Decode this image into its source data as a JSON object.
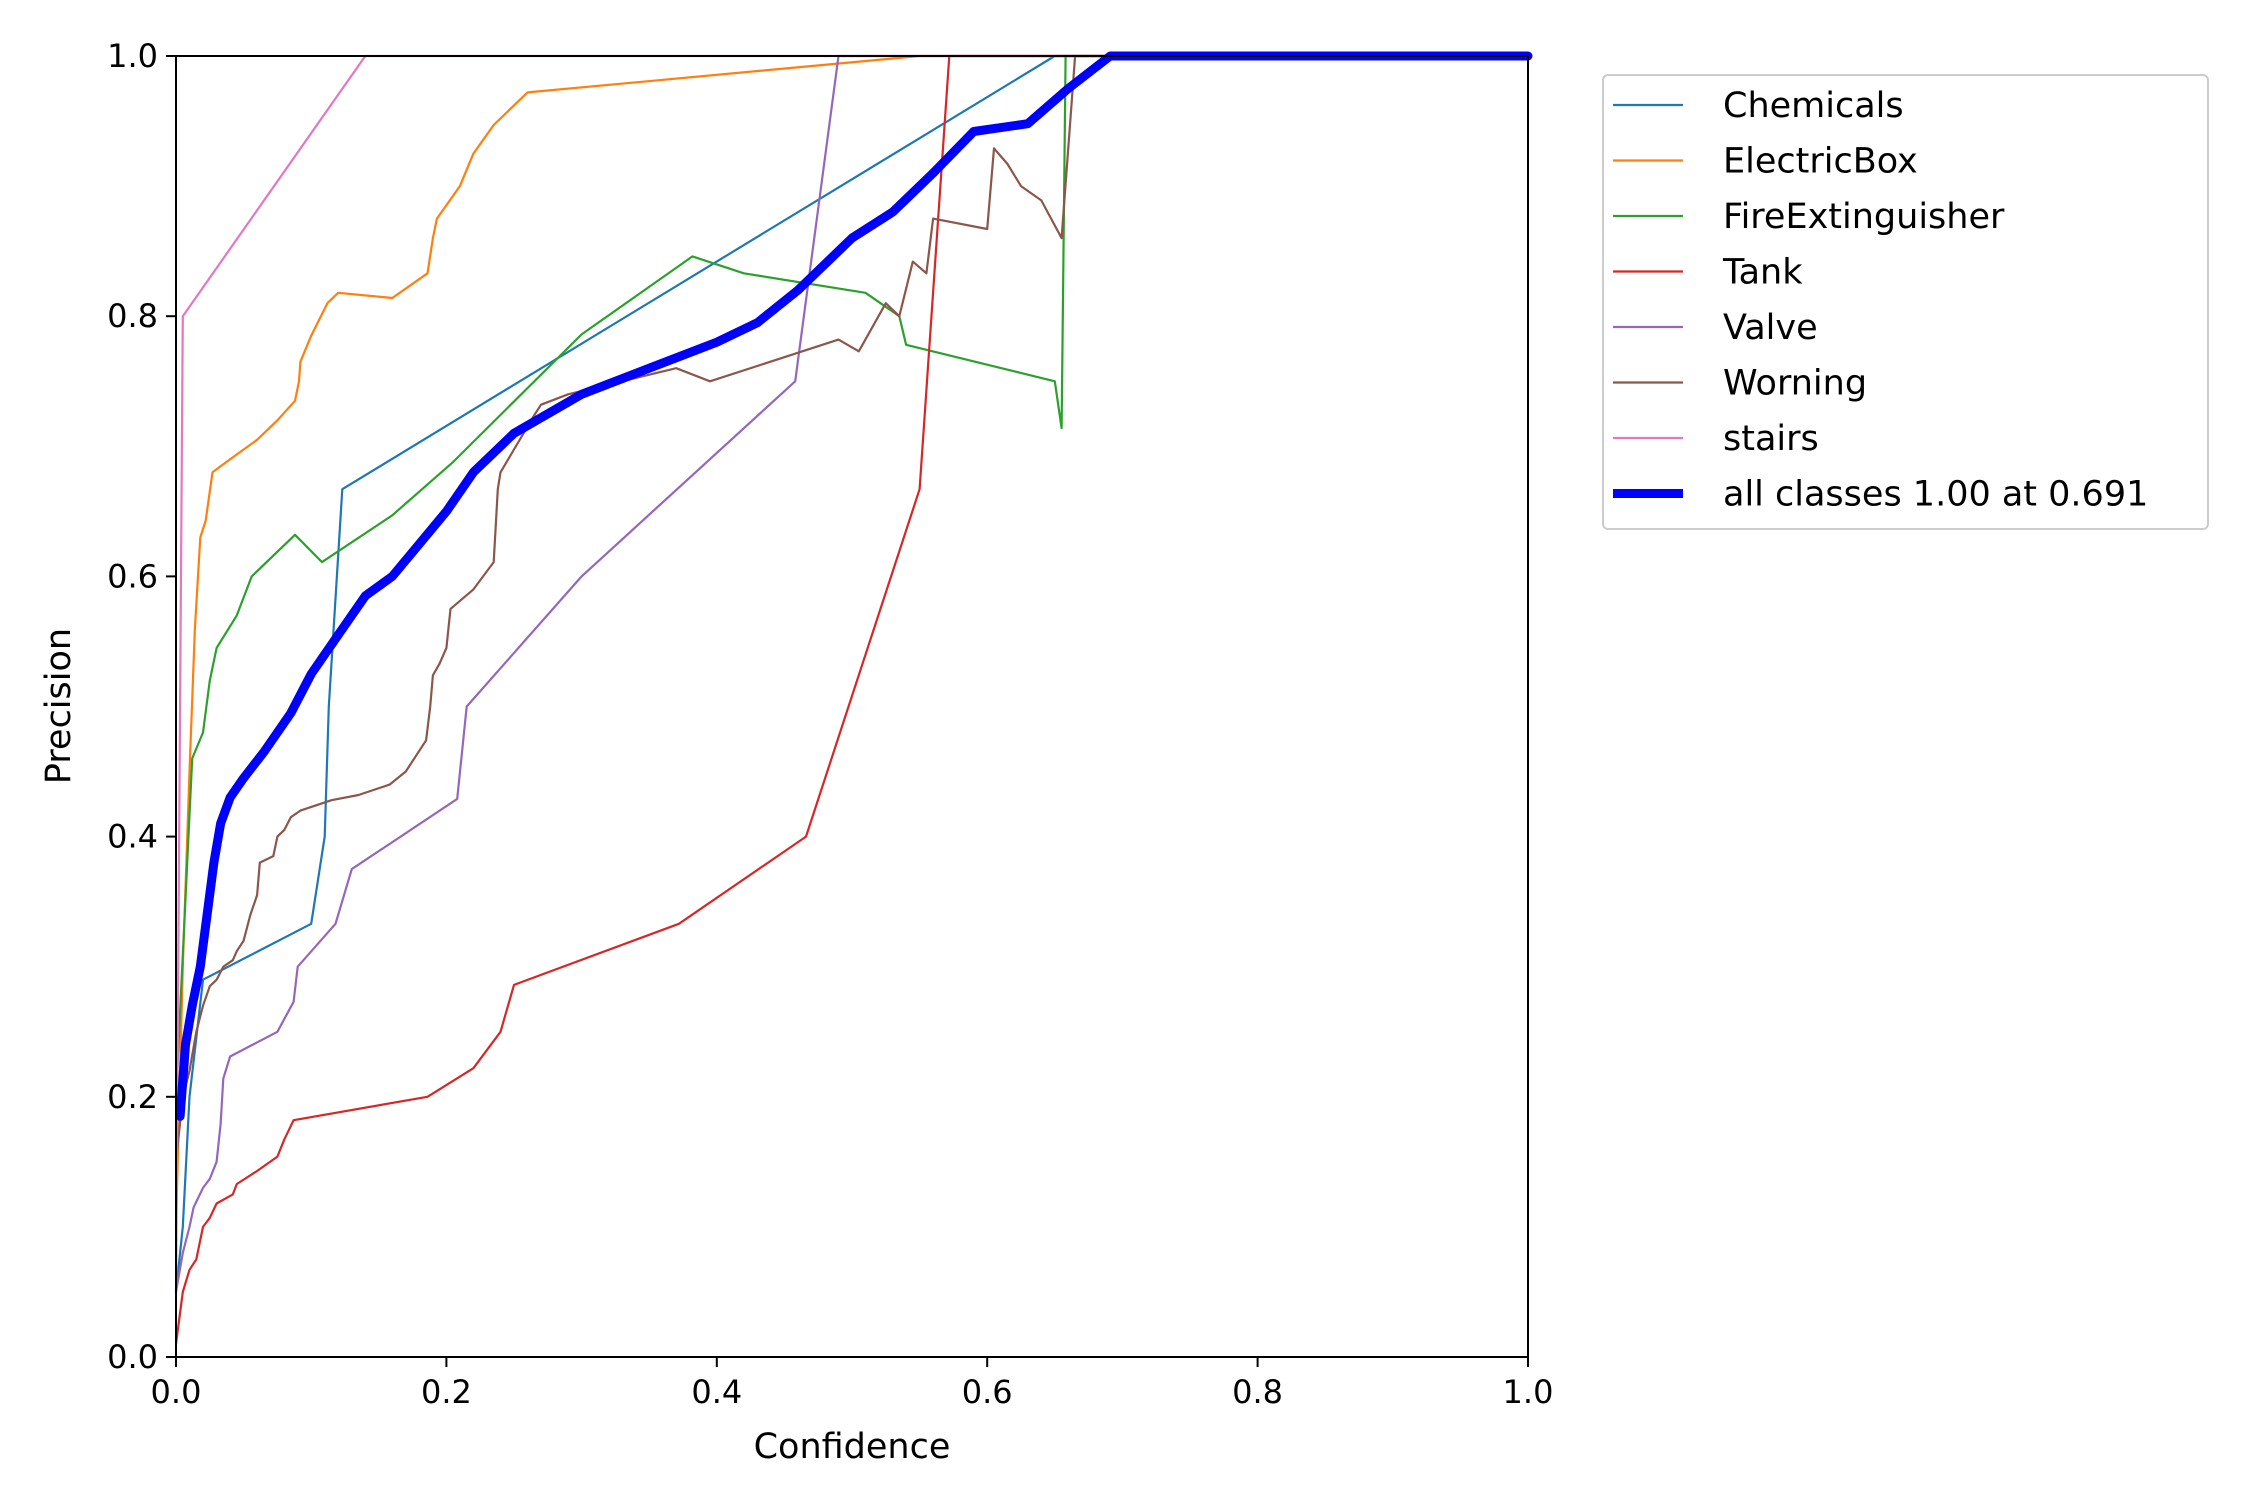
{
  "chart_data": {
    "type": "line",
    "title": "",
    "xlabel": "Confidence",
    "ylabel": "Precision",
    "xlim": [
      0,
      1
    ],
    "ylim": [
      0,
      1
    ],
    "x_ticks": [
      "0.0",
      "0.2",
      "0.4",
      "0.6",
      "0.8",
      "1.0"
    ],
    "y_ticks": [
      "0.0",
      "0.2",
      "0.4",
      "0.6",
      "0.8",
      "1.0"
    ],
    "grid": false,
    "legend_position": "outside-top-right",
    "series": [
      {
        "name": "Chemicals",
        "color": "#1f77b4",
        "points": [
          [
            0.0,
            0.05
          ],
          [
            0.005,
            0.1
          ],
          [
            0.01,
            0.2
          ],
          [
            0.02,
            0.29
          ],
          [
            0.1,
            0.333
          ],
          [
            0.11,
            0.4
          ],
          [
            0.113,
            0.5
          ],
          [
            0.123,
            0.667
          ],
          [
            0.65,
            1.0
          ],
          [
            1.0,
            1.0
          ]
        ]
      },
      {
        "name": "ElectricBox",
        "color": "#ff7f0e",
        "points": [
          [
            0.0,
            0.1
          ],
          [
            0.005,
            0.3
          ],
          [
            0.01,
            0.45
          ],
          [
            0.014,
            0.56
          ],
          [
            0.018,
            0.63
          ],
          [
            0.022,
            0.643
          ],
          [
            0.027,
            0.68
          ],
          [
            0.04,
            0.69
          ],
          [
            0.06,
            0.705
          ],
          [
            0.075,
            0.72
          ],
          [
            0.088,
            0.735
          ],
          [
            0.091,
            0.75
          ],
          [
            0.092,
            0.765
          ],
          [
            0.1,
            0.785
          ],
          [
            0.112,
            0.81
          ],
          [
            0.12,
            0.818
          ],
          [
            0.16,
            0.814
          ],
          [
            0.186,
            0.833
          ],
          [
            0.19,
            0.86
          ],
          [
            0.193,
            0.875
          ],
          [
            0.21,
            0.9
          ],
          [
            0.22,
            0.925
          ],
          [
            0.235,
            0.947
          ],
          [
            0.26,
            0.972
          ],
          [
            0.55,
            1.0
          ],
          [
            1.0,
            1.0
          ]
        ]
      },
      {
        "name": "FireExtinguisher",
        "color": "#2ca02c",
        "points": [
          [
            0.0,
            0.2
          ],
          [
            0.006,
            0.33
          ],
          [
            0.012,
            0.46
          ],
          [
            0.02,
            0.48
          ],
          [
            0.025,
            0.52
          ],
          [
            0.03,
            0.545
          ],
          [
            0.045,
            0.57
          ],
          [
            0.056,
            0.6
          ],
          [
            0.088,
            0.632
          ],
          [
            0.108,
            0.611
          ],
          [
            0.16,
            0.647
          ],
          [
            0.205,
            0.688
          ],
          [
            0.3,
            0.786
          ],
          [
            0.382,
            0.846
          ],
          [
            0.42,
            0.833
          ],
          [
            0.51,
            0.818
          ],
          [
            0.535,
            0.8
          ],
          [
            0.54,
            0.778
          ],
          [
            0.65,
            0.75
          ],
          [
            0.655,
            0.714
          ],
          [
            0.658,
            1.0
          ],
          [
            1.0,
            1.0
          ]
        ]
      },
      {
        "name": "Tank",
        "color": "#d62728",
        "points": [
          [
            0.0,
            0.01
          ],
          [
            0.005,
            0.05
          ],
          [
            0.01,
            0.067
          ],
          [
            0.015,
            0.075
          ],
          [
            0.02,
            0.1
          ],
          [
            0.025,
            0.107
          ],
          [
            0.03,
            0.118
          ],
          [
            0.042,
            0.125
          ],
          [
            0.045,
            0.133
          ],
          [
            0.06,
            0.143
          ],
          [
            0.075,
            0.154
          ],
          [
            0.08,
            0.167
          ],
          [
            0.087,
            0.182
          ],
          [
            0.186,
            0.2
          ],
          [
            0.22,
            0.222
          ],
          [
            0.24,
            0.25
          ],
          [
            0.25,
            0.286
          ],
          [
            0.372,
            0.333
          ],
          [
            0.466,
            0.4
          ],
          [
            0.55,
            0.667
          ],
          [
            0.572,
            1.0
          ],
          [
            1.0,
            1.0
          ]
        ]
      },
      {
        "name": "Valve",
        "color": "#9467bd",
        "points": [
          [
            0.0,
            0.05
          ],
          [
            0.005,
            0.08
          ],
          [
            0.01,
            0.1
          ],
          [
            0.013,
            0.115
          ],
          [
            0.02,
            0.13
          ],
          [
            0.025,
            0.137
          ],
          [
            0.03,
            0.15
          ],
          [
            0.033,
            0.179
          ],
          [
            0.035,
            0.214
          ],
          [
            0.04,
            0.231
          ],
          [
            0.075,
            0.25
          ],
          [
            0.087,
            0.273
          ],
          [
            0.09,
            0.3
          ],
          [
            0.118,
            0.333
          ],
          [
            0.13,
            0.375
          ],
          [
            0.208,
            0.429
          ],
          [
            0.215,
            0.5
          ],
          [
            0.3,
            0.6
          ],
          [
            0.458,
            0.75
          ],
          [
            0.49,
            1.0
          ],
          [
            1.0,
            1.0
          ]
        ]
      },
      {
        "name": "Worning",
        "color": "#8c564b",
        "points": [
          [
            0.0,
            0.15
          ],
          [
            0.005,
            0.2
          ],
          [
            0.01,
            0.22
          ],
          [
            0.015,
            0.25
          ],
          [
            0.02,
            0.27
          ],
          [
            0.025,
            0.285
          ],
          [
            0.03,
            0.29
          ],
          [
            0.035,
            0.3
          ],
          [
            0.042,
            0.305
          ],
          [
            0.045,
            0.312
          ],
          [
            0.05,
            0.32
          ],
          [
            0.055,
            0.34
          ],
          [
            0.06,
            0.355
          ],
          [
            0.062,
            0.38
          ],
          [
            0.072,
            0.385
          ],
          [
            0.075,
            0.4
          ],
          [
            0.08,
            0.405
          ],
          [
            0.085,
            0.415
          ],
          [
            0.092,
            0.42
          ],
          [
            0.115,
            0.428
          ],
          [
            0.135,
            0.432
          ],
          [
            0.158,
            0.44
          ],
          [
            0.17,
            0.45
          ],
          [
            0.185,
            0.474
          ],
          [
            0.188,
            0.5
          ],
          [
            0.19,
            0.524
          ],
          [
            0.195,
            0.533
          ],
          [
            0.2,
            0.545
          ],
          [
            0.203,
            0.575
          ],
          [
            0.22,
            0.59
          ],
          [
            0.235,
            0.611
          ],
          [
            0.238,
            0.667
          ],
          [
            0.24,
            0.68
          ],
          [
            0.265,
            0.724
          ],
          [
            0.27,
            0.732
          ],
          [
            0.29,
            0.74
          ],
          [
            0.37,
            0.76
          ],
          [
            0.395,
            0.75
          ],
          [
            0.49,
            0.782
          ],
          [
            0.505,
            0.773
          ],
          [
            0.525,
            0.81
          ],
          [
            0.535,
            0.8
          ],
          [
            0.545,
            0.842
          ],
          [
            0.555,
            0.833
          ],
          [
            0.56,
            0.875
          ],
          [
            0.6,
            0.867
          ],
          [
            0.605,
            0.929
          ],
          [
            0.615,
            0.917
          ],
          [
            0.625,
            0.9
          ],
          [
            0.64,
            0.889
          ],
          [
            0.655,
            0.86
          ],
          [
            0.665,
            1.0
          ],
          [
            1.0,
            1.0
          ]
        ]
      },
      {
        "name": "stairs",
        "color": "#e377c2",
        "points": [
          [
            0.0,
            0.05
          ],
          [
            0.005,
            0.8
          ],
          [
            0.14,
            1.0
          ],
          [
            1.0,
            1.0
          ]
        ]
      },
      {
        "name": "all classes 1.00 at 0.691",
        "color": "#0000ff",
        "bold": true,
        "points": [
          [
            0.003,
            0.185
          ],
          [
            0.007,
            0.24
          ],
          [
            0.012,
            0.27
          ],
          [
            0.018,
            0.3
          ],
          [
            0.023,
            0.34
          ],
          [
            0.028,
            0.38
          ],
          [
            0.033,
            0.41
          ],
          [
            0.04,
            0.43
          ],
          [
            0.05,
            0.445
          ],
          [
            0.065,
            0.465
          ],
          [
            0.085,
            0.495
          ],
          [
            0.1,
            0.525
          ],
          [
            0.12,
            0.555
          ],
          [
            0.14,
            0.585
          ],
          [
            0.16,
            0.6
          ],
          [
            0.18,
            0.625
          ],
          [
            0.2,
            0.65
          ],
          [
            0.22,
            0.68
          ],
          [
            0.25,
            0.71
          ],
          [
            0.3,
            0.74
          ],
          [
            0.35,
            0.76
          ],
          [
            0.4,
            0.78
          ],
          [
            0.43,
            0.795
          ],
          [
            0.46,
            0.82
          ],
          [
            0.5,
            0.86
          ],
          [
            0.53,
            0.88
          ],
          [
            0.56,
            0.91
          ],
          [
            0.59,
            0.942
          ],
          [
            0.63,
            0.948
          ],
          [
            0.66,
            0.975
          ],
          [
            0.691,
            1.0
          ],
          [
            1.0,
            1.0
          ]
        ]
      }
    ]
  }
}
